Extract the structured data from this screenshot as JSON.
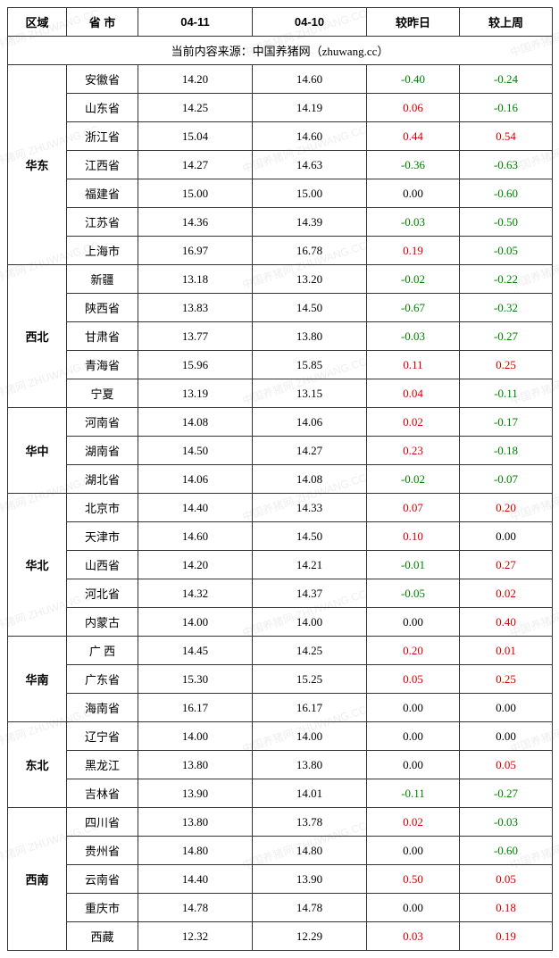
{
  "columns": {
    "region": "区域",
    "province": "省 市",
    "date1": "04-11",
    "date2": "04-10",
    "vs_yesterday": "较昨日",
    "vs_lastweek": "较上周"
  },
  "source_line": "当前内容来源：中国养猪网（zhuwang.cc）",
  "watermark_text": "中国养猪网 ZHUWANG.CC",
  "colors": {
    "positive": "#d40000",
    "negative": "#008000",
    "neutral": "#000000",
    "border": "#333333",
    "background": "#ffffff"
  },
  "regions": [
    {
      "name": "华东",
      "rows": [
        {
          "prov": "安徽省",
          "d1": "14.20",
          "d2": "14.60",
          "yd": "-0.40",
          "wk": "-0.24"
        },
        {
          "prov": "山东省",
          "d1": "14.25",
          "d2": "14.19",
          "yd": "0.06",
          "wk": "-0.16"
        },
        {
          "prov": "浙江省",
          "d1": "15.04",
          "d2": "14.60",
          "yd": "0.44",
          "wk": "0.54"
        },
        {
          "prov": "江西省",
          "d1": "14.27",
          "d2": "14.63",
          "yd": "-0.36",
          "wk": "-0.63"
        },
        {
          "prov": "福建省",
          "d1": "15.00",
          "d2": "15.00",
          "yd": "0.00",
          "wk": "-0.60"
        },
        {
          "prov": "江苏省",
          "d1": "14.36",
          "d2": "14.39",
          "yd": "-0.03",
          "wk": "-0.50"
        },
        {
          "prov": "上海市",
          "d1": "16.97",
          "d2": "16.78",
          "yd": "0.19",
          "wk": "-0.05"
        }
      ]
    },
    {
      "name": "西北",
      "rows": [
        {
          "prov": "新疆",
          "d1": "13.18",
          "d2": "13.20",
          "yd": "-0.02",
          "wk": "-0.22"
        },
        {
          "prov": "陕西省",
          "d1": "13.83",
          "d2": "14.50",
          "yd": "-0.67",
          "wk": "-0.32"
        },
        {
          "prov": "甘肃省",
          "d1": "13.77",
          "d2": "13.80",
          "yd": "-0.03",
          "wk": "-0.27"
        },
        {
          "prov": "青海省",
          "d1": "15.96",
          "d2": "15.85",
          "yd": "0.11",
          "wk": "0.25"
        },
        {
          "prov": "宁夏",
          "d1": "13.19",
          "d2": "13.15",
          "yd": "0.04",
          "wk": "-0.11"
        }
      ]
    },
    {
      "name": "华中",
      "rows": [
        {
          "prov": "河南省",
          "d1": "14.08",
          "d2": "14.06",
          "yd": "0.02",
          "wk": "-0.17"
        },
        {
          "prov": "湖南省",
          "d1": "14.50",
          "d2": "14.27",
          "yd": "0.23",
          "wk": "-0.18"
        },
        {
          "prov": "湖北省",
          "d1": "14.06",
          "d2": "14.08",
          "yd": "-0.02",
          "wk": "-0.07"
        }
      ]
    },
    {
      "name": "华北",
      "rows": [
        {
          "prov": "北京市",
          "d1": "14.40",
          "d2": "14.33",
          "yd": "0.07",
          "wk": "0.20"
        },
        {
          "prov": "天津市",
          "d1": "14.60",
          "d2": "14.50",
          "yd": "0.10",
          "wk": "0.00"
        },
        {
          "prov": "山西省",
          "d1": "14.20",
          "d2": "14.21",
          "yd": "-0.01",
          "wk": "0.27"
        },
        {
          "prov": "河北省",
          "d1": "14.32",
          "d2": "14.37",
          "yd": "-0.05",
          "wk": "0.02"
        },
        {
          "prov": "内蒙古",
          "d1": "14.00",
          "d2": "14.00",
          "yd": "0.00",
          "wk": "0.40"
        }
      ]
    },
    {
      "name": "华南",
      "rows": [
        {
          "prov": "广 西",
          "d1": "14.45",
          "d2": "14.25",
          "yd": "0.20",
          "wk": "0.01"
        },
        {
          "prov": "广东省",
          "d1": "15.30",
          "d2": "15.25",
          "yd": "0.05",
          "wk": "0.25"
        },
        {
          "prov": "海南省",
          "d1": "16.17",
          "d2": "16.17",
          "yd": "0.00",
          "wk": "0.00"
        }
      ]
    },
    {
      "name": "东北",
      "rows": [
        {
          "prov": "辽宁省",
          "d1": "14.00",
          "d2": "14.00",
          "yd": "0.00",
          "wk": "0.00"
        },
        {
          "prov": "黑龙江",
          "d1": "13.80",
          "d2": "13.80",
          "yd": "0.00",
          "wk": "0.05"
        },
        {
          "prov": "吉林省",
          "d1": "13.90",
          "d2": "14.01",
          "yd": "-0.11",
          "wk": "-0.27"
        }
      ]
    },
    {
      "name": "西南",
      "rows": [
        {
          "prov": "四川省",
          "d1": "13.80",
          "d2": "13.78",
          "yd": "0.02",
          "wk": "-0.03"
        },
        {
          "prov": "贵州省",
          "d1": "14.80",
          "d2": "14.80",
          "yd": "0.00",
          "wk": "-0.60"
        },
        {
          "prov": "云南省",
          "d1": "14.40",
          "d2": "13.90",
          "yd": "0.50",
          "wk": "0.05"
        },
        {
          "prov": "重庆市",
          "d1": "14.78",
          "d2": "14.78",
          "yd": "0.00",
          "wk": "0.18"
        },
        {
          "prov": "西藏",
          "d1": "12.32",
          "d2": "12.29",
          "yd": "0.03",
          "wk": "0.19"
        }
      ]
    }
  ]
}
